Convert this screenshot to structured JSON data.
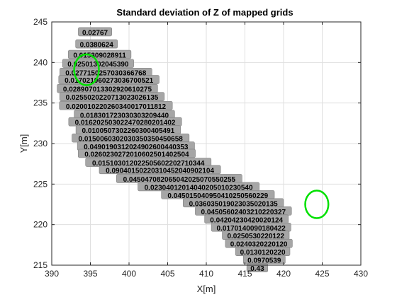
{
  "chart_data": {
    "type": "scatter",
    "title": "Standard deviation of Z of mapped grids",
    "xlabel": "X[m]",
    "ylabel": "Y[m]",
    "xlim": [
      390,
      430
    ],
    "ylim": [
      215,
      245
    ],
    "xticks": [
      390,
      395,
      400,
      405,
      410,
      415,
      420,
      425,
      430
    ],
    "yticks": [
      215,
      220,
      225,
      230,
      235,
      240,
      245
    ],
    "grid": true,
    "colors": {
      "cell_fill": "#a6a6a6",
      "cell_edge": "#808080",
      "highlight_circle": "#00e000",
      "label_text": "#000000"
    },
    "value_labels": [
      {
        "x": 395.6,
        "y": 243.7,
        "text": "0.02767"
      },
      {
        "x": 395.8,
        "y": 242.2,
        "text": "0.0380624"
      },
      {
        "x": 396.2,
        "y": 240.9,
        "text": "0.015309028911"
      },
      {
        "x": 396.0,
        "y": 239.8,
        "text": "0.02501302045390"
      },
      {
        "x": 397.0,
        "y": 238.7,
        "text": "0.0277150257030366768"
      },
      {
        "x": 397.4,
        "y": 237.8,
        "text": "0.017021060273036700521"
      },
      {
        "x": 397.2,
        "y": 236.7,
        "text": "0.028907013302920610275"
      },
      {
        "x": 397.8,
        "y": 235.7,
        "text": "0.0255020220713023026135"
      },
      {
        "x": 398.3,
        "y": 234.6,
        "text": "0.020010220260340017011812"
      },
      {
        "x": 399.4,
        "y": 233.5,
        "text": "0.018301723030303209440"
      },
      {
        "x": 399.5,
        "y": 232.6,
        "text": "0.016202503022470280201402"
      },
      {
        "x": 399.9,
        "y": 231.6,
        "text": "0.0100507302260300405491"
      },
      {
        "x": 400.2,
        "y": 230.6,
        "text": "0.0150060302030350350450658"
      },
      {
        "x": 400.9,
        "y": 229.6,
        "text": "0.0490190312024902600440353"
      },
      {
        "x": 401.0,
        "y": 228.7,
        "text": "0.0260230272010602501402504"
      },
      {
        "x": 402.5,
        "y": 227.6,
        "text": "0.015103012022505602202710344"
      },
      {
        "x": 404.0,
        "y": 226.7,
        "text": "0.09040150220310452040902104"
      },
      {
        "x": 406.5,
        "y": 225.6,
        "text": "0.045047082065042025070550255"
      },
      {
        "x": 409.0,
        "y": 224.6,
        "text": "0.02304012014040205010230540"
      },
      {
        "x": 411.5,
        "y": 223.6,
        "text": "0.045015040950410250560229"
      },
      {
        "x": 413.5,
        "y": 222.6,
        "text": "0.036035019023035020135"
      },
      {
        "x": 414.8,
        "y": 221.6,
        "text": "0.04505602403210220327"
      },
      {
        "x": 415.2,
        "y": 220.6,
        "text": "0.04204230420020124"
      },
      {
        "x": 415.8,
        "y": 219.6,
        "text": "0.0170140090180422"
      },
      {
        "x": 416.4,
        "y": 218.6,
        "text": "0.0250530220122"
      },
      {
        "x": 416.8,
        "y": 217.6,
        "text": "0.0240320220120"
      },
      {
        "x": 417.3,
        "y": 216.6,
        "text": "0.0130120220"
      },
      {
        "x": 417.5,
        "y": 215.6,
        "text": "0.0970539"
      },
      {
        "x": 416.6,
        "y": 214.6,
        "text": "0.43"
      }
    ],
    "highlight_circles": [
      {
        "cx": 394.5,
        "cy": 239.1,
        "rx": 1.6,
        "ry": 1.9
      },
      {
        "cx": 424.3,
        "cy": 222.5,
        "rx": 1.5,
        "ry": 1.7
      }
    ]
  }
}
